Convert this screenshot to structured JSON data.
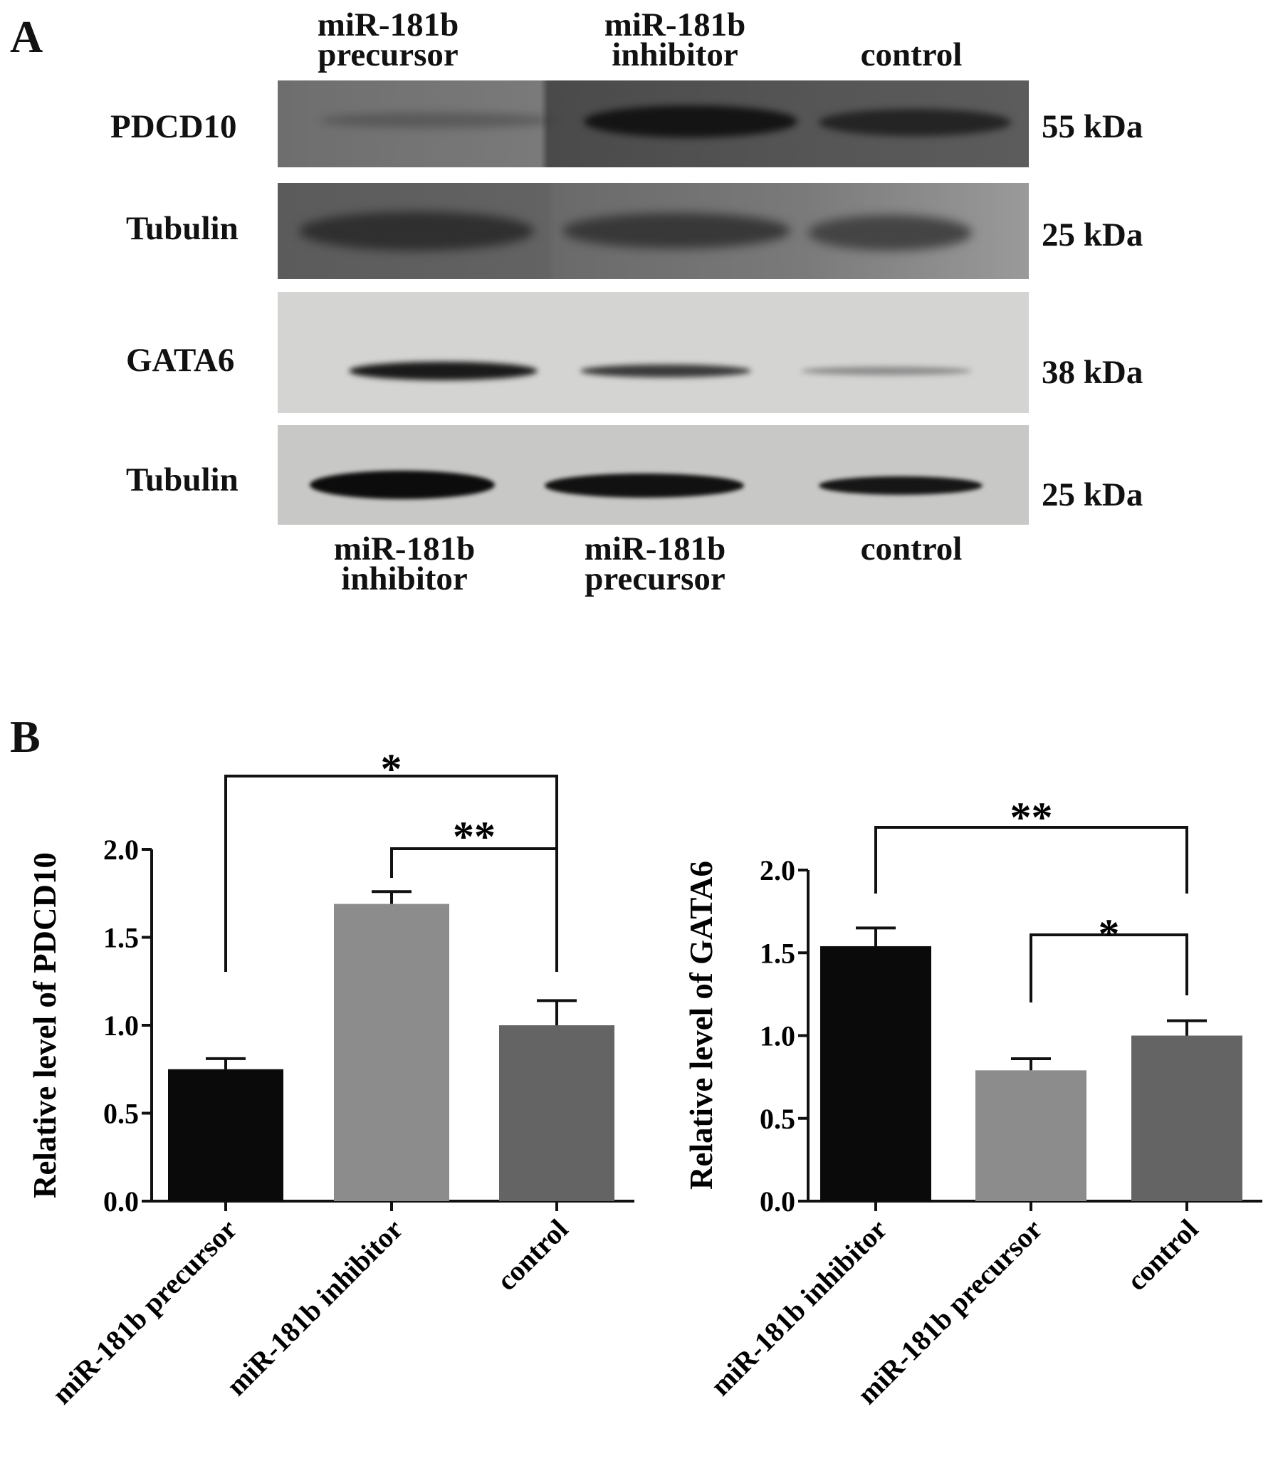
{
  "panel_a": {
    "letter": "A",
    "top_lanes": [
      {
        "line1": "miR-181b",
        "line2": "precursor"
      },
      {
        "line1": "miR-181b",
        "line2": "inhibitor"
      },
      {
        "line1": "control",
        "line2": ""
      }
    ],
    "bottom_lanes": [
      {
        "line1": "miR-181b",
        "line2": "inhibitor"
      },
      {
        "line1": "miR-181b",
        "line2": "precursor"
      },
      {
        "line1": "control",
        "line2": ""
      }
    ],
    "blots": [
      {
        "protein": "PDCD10",
        "size": "55 kDa"
      },
      {
        "protein": "Tubulin",
        "size": "25 kDa"
      },
      {
        "protein": "GATA6",
        "size": "38 kDa"
      },
      {
        "protein": "Tubulin",
        "size": "25 kDa"
      }
    ]
  },
  "panel_b": {
    "letter": "B"
  },
  "chart_data": [
    {
      "type": "bar",
      "ylabel": "Relative level of PDCD10",
      "categories": [
        "miR-181b precursor",
        "miR-181b inhibitor",
        "control"
      ],
      "values": [
        0.75,
        1.69,
        1.0
      ],
      "errors": [
        0.06,
        0.07,
        0.14
      ],
      "bar_colors": [
        "#0a0a0a",
        "#8c8c8c",
        "#646464"
      ],
      "ylim": [
        0,
        2.0
      ],
      "yticks": [
        "0.0",
        "0.5",
        "1.0",
        "1.5",
        "2.0"
      ],
      "significance": [
        {
          "from": "miR-181b precursor",
          "to": "control",
          "label": "*"
        },
        {
          "from": "miR-181b inhibitor",
          "to": "control",
          "label": "**"
        }
      ]
    },
    {
      "type": "bar",
      "ylabel": "Relative level of GATA6",
      "categories": [
        "miR-181b inhibitor",
        "miR-181b precursor",
        "control"
      ],
      "values": [
        1.54,
        0.79,
        1.0
      ],
      "errors": [
        0.11,
        0.07,
        0.09
      ],
      "bar_colors": [
        "#0a0a0a",
        "#8c8c8c",
        "#646464"
      ],
      "ylim": [
        0,
        2.0
      ],
      "yticks": [
        "0.0",
        "0.5",
        "1.0",
        "1.5",
        "2.0"
      ],
      "significance": [
        {
          "from": "miR-181b inhibitor",
          "to": "control",
          "label": "**"
        },
        {
          "from": "miR-181b precursor",
          "to": "control",
          "label": "*"
        }
      ]
    }
  ]
}
